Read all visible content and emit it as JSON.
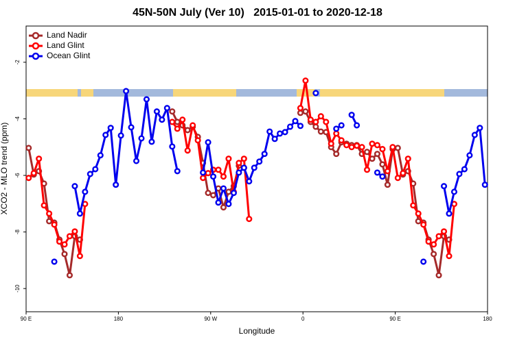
{
  "chart_data": {
    "type": "line",
    "title": "45N-50N July (Ver 10)   2015-01-01 to 2020-12-18",
    "x_label": "Longitude",
    "y_label": "XCO2 - MLO trend (ppm)",
    "x": [
      -267.5,
      -262.5,
      -257.5,
      -252.5,
      -247.5,
      -242.5,
      -237.5,
      -232.5,
      -227.5,
      -222.5,
      -217.5,
      -212.5,
      -207.5,
      -202.5,
      -197.5,
      -192.5,
      -187.5,
      -182.5,
      -177.5,
      -172.5,
      -167.5,
      -162.5,
      -157.5,
      -152.5,
      -147.5,
      -142.5,
      -137.5,
      -132.5,
      -127.5,
      -122.5,
      -117.5,
      -112.5,
      -107.5,
      -102.5,
      -97.5,
      -92.5,
      -87.5,
      -82.5,
      -77.5,
      -72.5,
      -67.5,
      -62.5,
      -57.5,
      -52.5,
      -47.5,
      -42.5,
      -37.5,
      -32.5,
      -27.5,
      -22.5,
      -17.5,
      -12.5,
      -7.5,
      -2.5,
      2.5,
      7.5,
      12.5,
      17.5,
      22.5,
      27.5,
      32.5,
      37.5,
      42.5,
      47.5,
      52.5,
      57.5,
      62.5,
      67.5,
      72.5,
      77.5,
      82.5,
      87.5,
      92.5,
      97.5,
      102.5,
      107.5,
      112.5,
      117.5,
      122.5,
      127.5,
      132.5,
      137.5,
      142.5,
      147.5,
      152.5,
      157.5,
      162.5,
      167.5,
      172.5,
      177.5
    ],
    "series": [
      {
        "name": "Land Nadir",
        "color": "#a52a2a",
        "values": [
          -5.03,
          -5.97,
          -5.85,
          -6.29,
          -7.62,
          -7.67,
          -8.27,
          -8.78,
          -9.53,
          -8.15,
          -8.27,
          null,
          null,
          null,
          null,
          null,
          null,
          null,
          null,
          null,
          null,
          null,
          null,
          null,
          null,
          null,
          null,
          null,
          -3.74,
          -4.11,
          -4.23,
          -4.4,
          -4.28,
          -4.64,
          -5.56,
          -6.62,
          -6.7,
          -6.46,
          -7.13,
          -6.58,
          -6.38,
          -5.66,
          -5.73,
          null,
          null,
          null,
          null,
          null,
          null,
          null,
          null,
          null,
          null,
          -3.79,
          -3.74,
          -4.11,
          -4.28,
          -4.45,
          -4.47,
          -5.0,
          -5.24,
          -4.83,
          -4.88,
          -4.93,
          -4.93,
          -5.24,
          -5.17,
          -5.41,
          -5.24,
          -5.61,
          -6.33,
          -5.07,
          -5.03,
          -5.97,
          -5.85,
          -6.29,
          -7.62,
          -7.67,
          -8.27,
          -8.78,
          -9.53,
          -8.15,
          -8.27,
          null,
          null,
          null,
          null,
          null,
          null,
          null
        ]
      },
      {
        "name": "Land Glint",
        "color": "#ff0000",
        "values": [
          -6.09,
          -5.92,
          -5.41,
          -7.06,
          -7.35,
          -7.74,
          -8.34,
          -8.44,
          -8.15,
          -7.98,
          -8.85,
          -7.01,
          null,
          null,
          null,
          null,
          null,
          null,
          null,
          null,
          null,
          null,
          null,
          null,
          null,
          null,
          null,
          null,
          -4.11,
          -4.35,
          -4.03,
          -5.12,
          -4.23,
          -4.76,
          -6.09,
          -5.92,
          -5.8,
          -5.8,
          -6.04,
          -5.41,
          -6.58,
          -5.56,
          -5.41,
          -7.54,
          null,
          null,
          null,
          null,
          null,
          null,
          null,
          null,
          null,
          -3.62,
          -2.65,
          -4.03,
          -4.11,
          -3.91,
          -4.11,
          -4.88,
          -4.52,
          -4.76,
          -4.93,
          -5.0,
          -4.95,
          -5.0,
          -5.8,
          -4.88,
          -4.93,
          -5.07,
          -5.85,
          -5.0,
          -6.09,
          -5.92,
          -5.41,
          -7.06,
          -7.35,
          -7.74,
          -8.34,
          -8.44,
          -8.15,
          -7.98,
          -8.85,
          -7.01,
          null,
          null,
          null,
          null,
          null,
          null
        ]
      },
      {
        "name": "Ocean Glint",
        "color": "#0000ee",
        "values": [
          null,
          null,
          null,
          null,
          null,
          -9.05,
          null,
          null,
          null,
          -6.38,
          -7.35,
          -6.58,
          -5.95,
          -5.78,
          -5.29,
          -4.57,
          -4.32,
          -6.33,
          -4.59,
          -3.02,
          -4.3,
          -5.49,
          -4.69,
          -3.31,
          -4.81,
          -3.74,
          -4.03,
          -3.62,
          -4.98,
          -5.85,
          null,
          null,
          null,
          null,
          -5.9,
          -4.83,
          -6.04,
          -6.96,
          -6.46,
          -7.01,
          -6.62,
          -5.9,
          -5.73,
          -6.21,
          -5.73,
          -5.51,
          -5.24,
          -4.45,
          -4.71,
          -4.52,
          -4.47,
          -4.28,
          -4.08,
          -4.25,
          null,
          null,
          -3.09,
          null,
          null,
          null,
          -4.35,
          -4.23,
          null,
          -3.86,
          -4.23,
          null,
          null,
          null,
          -5.9,
          -6.04,
          null,
          null,
          null,
          null,
          null,
          null,
          null,
          -9.05,
          null,
          null,
          null,
          -6.38,
          -7.35,
          -6.58,
          -5.95,
          -5.78,
          -5.29,
          -4.57,
          -4.32,
          -6.33
        ]
      }
    ],
    "xlim": [
      -270,
      180
    ],
    "xticks": [
      {
        "value": -270,
        "label": "90 E"
      },
      {
        "value": -180,
        "label": "180"
      },
      {
        "value": -90,
        "label": "90 W"
      },
      0,
      {
        "value": 90,
        "label": "90 E"
      },
      180
    ],
    "ylim": [
      -10.82,
      -0.72
    ],
    "yticks": [
      -10,
      -8,
      -6,
      -4,
      -2
    ],
    "grid": false,
    "legend": "top-left"
  }
}
